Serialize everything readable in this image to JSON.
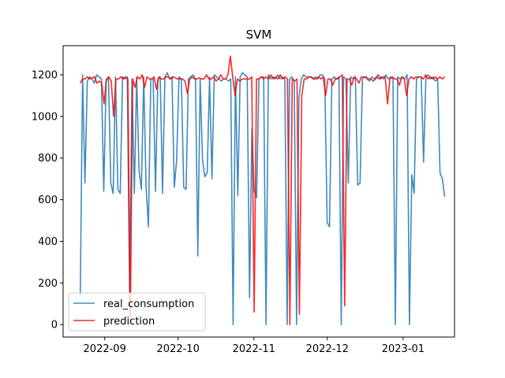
{
  "chart_data": {
    "type": "line",
    "title": "SVM",
    "xlabel": "",
    "ylabel": "",
    "ylim": [
      -60,
      1340
    ],
    "xlim": [
      "2022-08-15",
      "2023-01-22"
    ],
    "yticks": [
      0,
      200,
      400,
      600,
      800,
      1000,
      1200
    ],
    "xticks": [
      {
        "date": "2022-09-01",
        "label": "2022-09"
      },
      {
        "date": "2022-10-01",
        "label": "2022-10"
      },
      {
        "date": "2022-11-01",
        "label": "2022-11"
      },
      {
        "date": "2022-12-01",
        "label": "2022-12"
      },
      {
        "date": "2023-01-01",
        "label": "2023-01"
      }
    ],
    "grid": false,
    "legend": "lower-left",
    "x_start": "2022-08-22",
    "x_end": "2023-01-18",
    "series": [
      {
        "name": "real_consumption",
        "color": "#1f77b4",
        "values": [
          130,
          1200,
          680,
          1170,
          1190,
          1180,
          1160,
          1200,
          1190,
          1180,
          640,
          1170,
          1190,
          680,
          630,
          1190,
          650,
          630,
          1190,
          1180,
          1190,
          130,
          1180,
          630,
          1190,
          740,
          650,
          1190,
          660,
          470,
          1180,
          1180,
          640,
          1180,
          1190,
          630,
          1190,
          1210,
          1180,
          1190,
          660,
          790,
          1190,
          1180,
          660,
          650,
          1180,
          1190,
          1200,
          1180,
          330,
          1180,
          790,
          710,
          730,
          1190,
          700,
          1200,
          1190,
          1180,
          1170,
          1180,
          1180,
          1170,
          1180,
          0,
          1190,
          620,
          1190,
          1210,
          1200,
          1190,
          130,
          940,
          640,
          610,
          1180,
          1190,
          1190,
          0,
          1200,
          1180,
          1190,
          1180,
          1200,
          1180,
          1190,
          1180,
          0,
          1180,
          1190,
          1170,
          0,
          1090,
          1180,
          1200,
          1190,
          1190,
          1190,
          1180,
          1190,
          1180,
          1200,
          1200,
          1180,
          490,
          470,
          1180,
          1190,
          1180,
          1190,
          0,
          1190,
          1180,
          680,
          1190,
          1180,
          1190,
          670,
          680,
          1180,
          1190,
          1180,
          1170,
          1190,
          1180,
          1190,
          1180,
          1190,
          1180,
          1200,
          1180,
          1190,
          1180,
          0,
          1190,
          1180,
          1190,
          1180,
          1200,
          0,
          720,
          630,
          1180,
          1190,
          1190,
          780,
          1190,
          1200,
          1180,
          1190,
          1170,
          1180,
          730,
          700,
          615
        ]
      },
      {
        "name": "prediction",
        "color": "#ff0000",
        "values": [
          1160,
          1180,
          1180,
          1190,
          1180,
          1185,
          1190,
          1160,
          1170,
          1160,
          1060,
          1180,
          1190,
          1170,
          1000,
          1180,
          1180,
          1190,
          1180,
          1190,
          1180,
          0,
          1180,
          1140,
          1190,
          1180,
          1200,
          1140,
          1190,
          1180,
          1180,
          1190,
          1130,
          1190,
          1180,
          1180,
          1190,
          1190,
          1180,
          1190,
          1185,
          1180,
          1180,
          1180,
          1170,
          1110,
          1180,
          1190,
          1180,
          1180,
          1185,
          1180,
          1180,
          1200,
          1180,
          1180,
          1190,
          1170,
          1180,
          1200,
          1180,
          1180,
          1200,
          1290,
          1190,
          1100,
          1180,
          1170,
          1180,
          1180,
          1180,
          1180,
          1190,
          60,
          1180,
          1180,
          1190,
          1180,
          1190,
          1180,
          1200,
          1180,
          1190,
          1180,
          1200,
          1180,
          1190,
          1180,
          0,
          1180,
          1170,
          1180,
          50,
          1100,
          1180,
          1180,
          1190,
          1190,
          1180,
          1180,
          1190,
          1180,
          1190,
          1100,
          1180,
          1180,
          1150,
          1180,
          1180,
          1190,
          1200,
          90,
          1180,
          1180,
          1150,
          1190,
          1180,
          1160,
          1190,
          1190,
          1190,
          1180,
          1180,
          1170,
          1180,
          1200,
          1180,
          1190,
          1190,
          1060,
          1180,
          1190,
          1180,
          1180,
          1150,
          1190,
          1180,
          1100,
          1180,
          1190,
          1180,
          1190,
          1190,
          1190,
          1180,
          1200,
          1180,
          1190,
          1180,
          1190,
          1180,
          1190,
          1180,
          1190
        ]
      }
    ]
  }
}
